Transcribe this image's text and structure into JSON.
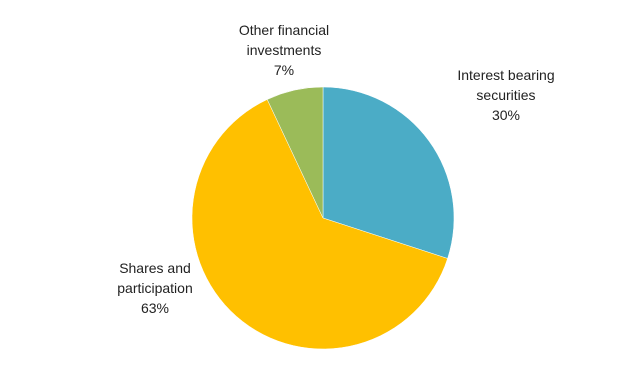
{
  "chart_data": {
    "type": "pie",
    "categories": [
      "Interest bearing securities",
      "Shares and participation",
      "Other financial investments"
    ],
    "values": [
      30,
      63,
      7
    ],
    "value_labels": [
      "30%",
      "63%",
      "7%"
    ],
    "colors": [
      "#4bacc6",
      "#ffc000",
      "#9bbb59"
    ],
    "start_angle": 0,
    "direction": "clockwise"
  }
}
